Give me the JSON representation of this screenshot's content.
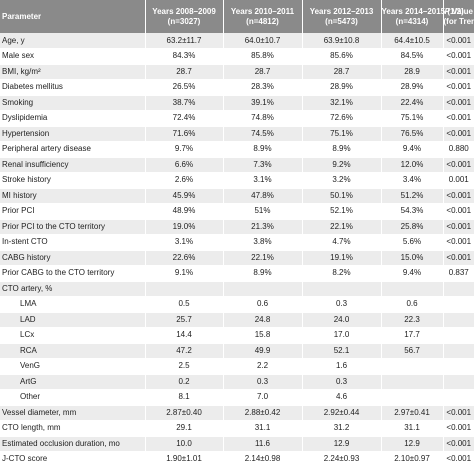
{
  "header": {
    "parameter": "Parameter",
    "col1": "Years 2008–2009",
    "col1_sub": "(n=3027)",
    "col2": "Years 2010–2011",
    "col2_sub": "(n=4812)",
    "col3": "Years 2012–2013",
    "col3_sub": "(n=5473)",
    "col4": "Years 2014–2015 (1/2)",
    "col4_sub": "(n=4314)",
    "p_label": "P",
    "p_label_rest": " Value",
    "p_sub": "(for Trend)"
  },
  "rows": [
    {
      "label": "Age, y",
      "v1": "63.2±11.7",
      "v2": "64.0±10.7",
      "v3": "63.9±10.8",
      "v4": "64.4±10.5",
      "p": "<0.001",
      "indent": false
    },
    {
      "label": "Male sex",
      "v1": "84.3%",
      "v2": "85.8%",
      "v3": "85.6%",
      "v4": "84.5%",
      "p": "<0.001",
      "indent": false
    },
    {
      "label": "BMI, kg/m²",
      "v1": "28.7",
      "v2": "28.7",
      "v3": "28.7",
      "v4": "28.9",
      "p": "<0.001",
      "indent": false
    },
    {
      "label": "Diabetes mellitus",
      "v1": "26.5%",
      "v2": "28.3%",
      "v3": "28.9%",
      "v4": "28.9%",
      "p": "<0.001",
      "indent": false
    },
    {
      "label": "Smoking",
      "v1": "38.7%",
      "v2": "39.1%",
      "v3": "32.1%",
      "v4": "22.4%",
      "p": "<0.001",
      "indent": false
    },
    {
      "label": "Dyslipidemia",
      "v1": "72.4%",
      "v2": "74.8%",
      "v3": "72.6%",
      "v4": "75.1%",
      "p": "<0.001",
      "indent": false
    },
    {
      "label": "Hypertension",
      "v1": "71.6%",
      "v2": "74.5%",
      "v3": "75.1%",
      "v4": "76.5%",
      "p": "<0.001",
      "indent": false
    },
    {
      "label": "Peripheral artery disease",
      "v1": "9.7%",
      "v2": "8.9%",
      "v3": "8.9%",
      "v4": "9.4%",
      "p": "0.880",
      "indent": false
    },
    {
      "label": "Renal insufficiency",
      "v1": "6.6%",
      "v2": "7.3%",
      "v3": "9.2%",
      "v4": "12.0%",
      "p": "<0.001",
      "indent": false
    },
    {
      "label": "Stroke history",
      "v1": "2.6%",
      "v2": "3.1%",
      "v3": "3.2%",
      "v4": "3.4%",
      "p": "0.001",
      "indent": false
    },
    {
      "label": "MI history",
      "v1": "45.9%",
      "v2": "47.8%",
      "v3": "50.1%",
      "v4": "51.2%",
      "p": "<0.001",
      "indent": false
    },
    {
      "label": "Prior PCI",
      "v1": "48.9%",
      "v2": "51%",
      "v3": "52.1%",
      "v4": "54.3%",
      "p": "<0.001",
      "indent": false
    },
    {
      "label": "Prior PCI to the CTO territory",
      "v1": "19.0%",
      "v2": "21.3%",
      "v3": "22.1%",
      "v4": "25.8%",
      "p": "<0.001",
      "indent": false
    },
    {
      "label": "In-stent CTO",
      "v1": "3.1%",
      "v2": "3.8%",
      "v3": "4.7%",
      "v4": "5.6%",
      "p": "<0.001",
      "indent": false
    },
    {
      "label": "CABG history",
      "v1": "22.6%",
      "v2": "22.1%",
      "v3": "19.1%",
      "v4": "15.0%",
      "p": "<0.001",
      "indent": false
    },
    {
      "label": "Prior CABG to the CTO territory",
      "v1": "9.1%",
      "v2": "8.9%",
      "v3": "8.2%",
      "v4": "9.4%",
      "p": "0.837",
      "indent": false
    },
    {
      "label": "CTO artery, %",
      "v1": "",
      "v2": "",
      "v3": "",
      "v4": "",
      "p": "",
      "indent": false
    },
    {
      "label": "LMA",
      "v1": "0.5",
      "v2": "0.6",
      "v3": "0.3",
      "v4": "0.6",
      "p": "",
      "indent": true
    },
    {
      "label": "LAD",
      "v1": "25.7",
      "v2": "24.8",
      "v3": "24.0",
      "v4": "22.3",
      "p": "",
      "indent": true
    },
    {
      "label": "LCx",
      "v1": "14.4",
      "v2": "15.8",
      "v3": "17.0",
      "v4": "17.7",
      "p": "",
      "indent": true
    },
    {
      "label": "RCA",
      "v1": "47.2",
      "v2": "49.9",
      "v3": "52.1",
      "v4": "56.7",
      "p": "",
      "indent": true
    },
    {
      "label": "VenG",
      "v1": "2.5",
      "v2": "2.2",
      "v3": "1.6",
      "v4": "",
      "p": "",
      "indent": true
    },
    {
      "label": "ArtG",
      "v1": "0.2",
      "v2": "0.3",
      "v3": "0.3",
      "v4": "",
      "p": "",
      "indent": true
    },
    {
      "label": "Other",
      "v1": "8.1",
      "v2": "7.0",
      "v3": "4.6",
      "v4": "",
      "p": "",
      "indent": true
    },
    {
      "label": "Vessel diameter, mm",
      "v1": "2.87±0.40",
      "v2": "2.88±0.42",
      "v3": "2.92±0.44",
      "v4": "2.97±0.41",
      "p": "<0.001",
      "indent": false
    },
    {
      "label": "CTO length, mm",
      "v1": "29.1",
      "v2": "31.1",
      "v3": "31.2",
      "v4": "31.1",
      "p": "<0.001",
      "indent": false
    },
    {
      "label": "Estimated occlusion duration, mo",
      "v1": "10.0",
      "v2": "11.6",
      "v3": "12.9",
      "v4": "12.9",
      "p": "<0.001",
      "indent": false
    },
    {
      "label": "J-CTO score",
      "v1": "1.90±1.01",
      "v2": "2.14±0.98",
      "v3": "2.24±0.93",
      "v4": "2.10±0.97",
      "p": "<0.001",
      "indent": false
    }
  ]
}
